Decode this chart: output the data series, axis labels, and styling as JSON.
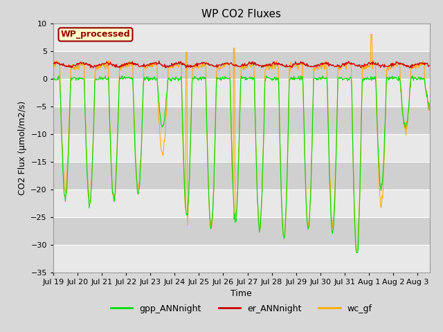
{
  "title": "WP CO2 Fluxes",
  "xlabel": "Time",
  "ylabel": "CO2 Flux (μmol/m2/s)",
  "ylim": [
    -35,
    10
  ],
  "yticks": [
    -35,
    -30,
    -25,
    -20,
    -15,
    -10,
    -5,
    0,
    5,
    10
  ],
  "xlim": [
    0,
    15.5
  ],
  "xtick_labels": [
    "Jul 19",
    "Jul 20",
    "Jul 21",
    "Jul 22",
    "Jul 23",
    "Jul 24",
    "Jul 25",
    "Jul 26",
    "Jul 27",
    "Jul 28",
    "Jul 29",
    "Jul 30",
    "Jul 31",
    "Aug 1",
    "Aug 2",
    "Aug 3"
  ],
  "xtick_positions": [
    0,
    1,
    2,
    3,
    4,
    5,
    6,
    7,
    8,
    9,
    10,
    11,
    12,
    13,
    14,
    15
  ],
  "color_gpp": "#00dd00",
  "color_er": "#cc0000",
  "color_wc": "#ffaa00",
  "legend_label1": "gpp_ANNnight",
  "legend_label2": "er_ANNnight",
  "legend_label3": "wc_gf",
  "annotation_text": "WP_processed",
  "annotation_color": "#990000",
  "annotation_bg": "#ffffcc",
  "bg_light": "#dcdcdc",
  "bg_dark": "#c8c8c8",
  "title_fontsize": 11,
  "label_fontsize": 9,
  "tick_fontsize": 8,
  "legend_fontsize": 9
}
